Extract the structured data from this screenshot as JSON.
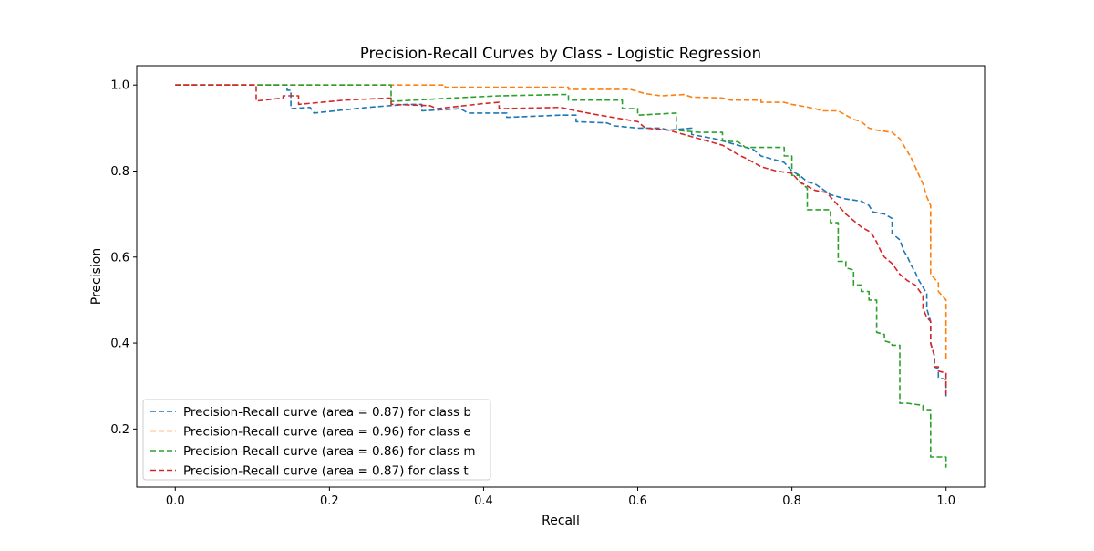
{
  "chart_data": {
    "type": "line",
    "title": "Precision-Recall Curves by Class - Logistic Regression",
    "xlabel": "Recall",
    "ylabel": "Precision",
    "xlim": [
      -0.05,
      1.05
    ],
    "ylim": [
      0.065,
      1.045
    ],
    "x_ticks": [
      0.0,
      0.2,
      0.4,
      0.6,
      0.8,
      1.0
    ],
    "x_tick_labels": [
      "0.0",
      "0.2",
      "0.4",
      "0.6",
      "0.8",
      "1.0"
    ],
    "y_ticks": [
      0.2,
      0.4,
      0.6,
      0.8,
      1.0
    ],
    "y_tick_labels": [
      "0.2",
      "0.4",
      "0.6",
      "0.8",
      "1.0"
    ],
    "grid": false,
    "legend_position": "lower-left",
    "line_style": "dashed",
    "series": [
      {
        "name": "Precision-Recall curve (area = 0.87) for class b",
        "color": "#1f77b4",
        "points": [
          [
            0.0,
            1.0
          ],
          [
            0.145,
            1.0
          ],
          [
            0.145,
            0.988
          ],
          [
            0.15,
            0.988
          ],
          [
            0.15,
            0.945
          ],
          [
            0.175,
            0.948
          ],
          [
            0.18,
            0.935
          ],
          [
            0.25,
            0.948
          ],
          [
            0.3,
            0.955
          ],
          [
            0.32,
            0.955
          ],
          [
            0.32,
            0.94
          ],
          [
            0.37,
            0.945
          ],
          [
            0.38,
            0.935
          ],
          [
            0.43,
            0.935
          ],
          [
            0.43,
            0.925
          ],
          [
            0.5,
            0.93
          ],
          [
            0.52,
            0.93
          ],
          [
            0.52,
            0.915
          ],
          [
            0.56,
            0.912
          ],
          [
            0.57,
            0.905
          ],
          [
            0.6,
            0.9
          ],
          [
            0.63,
            0.9
          ],
          [
            0.64,
            0.895
          ],
          [
            0.67,
            0.9
          ],
          [
            0.67,
            0.885
          ],
          [
            0.7,
            0.875
          ],
          [
            0.73,
            0.86
          ],
          [
            0.75,
            0.85
          ],
          [
            0.76,
            0.835
          ],
          [
            0.78,
            0.825
          ],
          [
            0.79,
            0.82
          ],
          [
            0.8,
            0.8
          ],
          [
            0.81,
            0.79
          ],
          [
            0.82,
            0.775
          ],
          [
            0.83,
            0.77
          ],
          [
            0.85,
            0.745
          ],
          [
            0.86,
            0.74
          ],
          [
            0.87,
            0.735
          ],
          [
            0.89,
            0.73
          ],
          [
            0.9,
            0.72
          ],
          [
            0.905,
            0.705
          ],
          [
            0.92,
            0.7
          ],
          [
            0.93,
            0.69
          ],
          [
            0.93,
            0.655
          ],
          [
            0.94,
            0.64
          ],
          [
            0.945,
            0.615
          ],
          [
            0.95,
            0.6
          ],
          [
            0.955,
            0.58
          ],
          [
            0.96,
            0.565
          ],
          [
            0.965,
            0.545
          ],
          [
            0.97,
            0.53
          ],
          [
            0.975,
            0.515
          ],
          [
            0.975,
            0.48
          ],
          [
            0.98,
            0.45
          ],
          [
            0.98,
            0.4
          ],
          [
            0.985,
            0.37
          ],
          [
            0.985,
            0.345
          ],
          [
            0.99,
            0.34
          ],
          [
            0.99,
            0.32
          ],
          [
            1.0,
            0.315
          ],
          [
            1.0,
            0.27
          ]
        ]
      },
      {
        "name": "Precision-Recall curve (area = 0.96) for class e",
        "color": "#ff7f0e",
        "points": [
          [
            0.0,
            1.0
          ],
          [
            0.35,
            1.0
          ],
          [
            0.35,
            0.995
          ],
          [
            0.51,
            0.995
          ],
          [
            0.51,
            0.99
          ],
          [
            0.59,
            0.99
          ],
          [
            0.6,
            0.985
          ],
          [
            0.61,
            0.98
          ],
          [
            0.63,
            0.975
          ],
          [
            0.66,
            0.978
          ],
          [
            0.67,
            0.972
          ],
          [
            0.71,
            0.97
          ],
          [
            0.72,
            0.965
          ],
          [
            0.76,
            0.965
          ],
          [
            0.76,
            0.96
          ],
          [
            0.79,
            0.96
          ],
          [
            0.8,
            0.955
          ],
          [
            0.81,
            0.952
          ],
          [
            0.83,
            0.945
          ],
          [
            0.84,
            0.94
          ],
          [
            0.86,
            0.94
          ],
          [
            0.87,
            0.93
          ],
          [
            0.88,
            0.92
          ],
          [
            0.89,
            0.915
          ],
          [
            0.9,
            0.9
          ],
          [
            0.91,
            0.895
          ],
          [
            0.93,
            0.89
          ],
          [
            0.94,
            0.875
          ],
          [
            0.945,
            0.86
          ],
          [
            0.95,
            0.845
          ],
          [
            0.955,
            0.83
          ],
          [
            0.96,
            0.81
          ],
          [
            0.965,
            0.79
          ],
          [
            0.97,
            0.77
          ],
          [
            0.975,
            0.74
          ],
          [
            0.98,
            0.72
          ],
          [
            0.98,
            0.56
          ],
          [
            0.99,
            0.54
          ],
          [
            0.99,
            0.52
          ],
          [
            1.0,
            0.5
          ],
          [
            1.0,
            0.36
          ]
        ]
      },
      {
        "name": "Precision-Recall curve (area = 0.86) for class m",
        "color": "#2ca02c",
        "points": [
          [
            0.0,
            1.0
          ],
          [
            0.28,
            1.0
          ],
          [
            0.28,
            0.962
          ],
          [
            0.31,
            0.965
          ],
          [
            0.36,
            0.97
          ],
          [
            0.42,
            0.975
          ],
          [
            0.5,
            0.978
          ],
          [
            0.51,
            0.978
          ],
          [
            0.51,
            0.965
          ],
          [
            0.58,
            0.965
          ],
          [
            0.58,
            0.945
          ],
          [
            0.6,
            0.945
          ],
          [
            0.6,
            0.93
          ],
          [
            0.65,
            0.935
          ],
          [
            0.65,
            0.895
          ],
          [
            0.68,
            0.89
          ],
          [
            0.71,
            0.89
          ],
          [
            0.71,
            0.87
          ],
          [
            0.73,
            0.868
          ],
          [
            0.74,
            0.855
          ],
          [
            0.79,
            0.855
          ],
          [
            0.79,
            0.835
          ],
          [
            0.8,
            0.835
          ],
          [
            0.8,
            0.79
          ],
          [
            0.81,
            0.79
          ],
          [
            0.81,
            0.775
          ],
          [
            0.82,
            0.76
          ],
          [
            0.82,
            0.71
          ],
          [
            0.84,
            0.71
          ],
          [
            0.85,
            0.71
          ],
          [
            0.85,
            0.68
          ],
          [
            0.86,
            0.68
          ],
          [
            0.86,
            0.59
          ],
          [
            0.87,
            0.59
          ],
          [
            0.87,
            0.575
          ],
          [
            0.88,
            0.57
          ],
          [
            0.88,
            0.535
          ],
          [
            0.89,
            0.535
          ],
          [
            0.89,
            0.52
          ],
          [
            0.9,
            0.52
          ],
          [
            0.9,
            0.5
          ],
          [
            0.91,
            0.5
          ],
          [
            0.91,
            0.425
          ],
          [
            0.92,
            0.42
          ],
          [
            0.92,
            0.405
          ],
          [
            0.93,
            0.4
          ],
          [
            0.93,
            0.395
          ],
          [
            0.94,
            0.395
          ],
          [
            0.94,
            0.26
          ],
          [
            0.95,
            0.26
          ],
          [
            0.97,
            0.255
          ],
          [
            0.97,
            0.245
          ],
          [
            0.98,
            0.245
          ],
          [
            0.98,
            0.135
          ],
          [
            0.99,
            0.135
          ],
          [
            1.0,
            0.135
          ],
          [
            1.0,
            0.11
          ]
        ]
      },
      {
        "name": "Precision-Recall curve (area = 0.87) for class t",
        "color": "#d62728",
        "points": [
          [
            0.0,
            1.0
          ],
          [
            0.105,
            1.0
          ],
          [
            0.105,
            0.963
          ],
          [
            0.14,
            0.97
          ],
          [
            0.14,
            0.975
          ],
          [
            0.16,
            0.975
          ],
          [
            0.16,
            0.955
          ],
          [
            0.22,
            0.965
          ],
          [
            0.28,
            0.97
          ],
          [
            0.28,
            0.955
          ],
          [
            0.33,
            0.952
          ],
          [
            0.34,
            0.945
          ],
          [
            0.4,
            0.957
          ],
          [
            0.42,
            0.96
          ],
          [
            0.42,
            0.945
          ],
          [
            0.5,
            0.948
          ],
          [
            0.52,
            0.94
          ],
          [
            0.55,
            0.93
          ],
          [
            0.6,
            0.915
          ],
          [
            0.61,
            0.9
          ],
          [
            0.64,
            0.895
          ],
          [
            0.65,
            0.89
          ],
          [
            0.68,
            0.875
          ],
          [
            0.7,
            0.865
          ],
          [
            0.71,
            0.86
          ],
          [
            0.72,
            0.85
          ],
          [
            0.73,
            0.838
          ],
          [
            0.74,
            0.83
          ],
          [
            0.75,
            0.82
          ],
          [
            0.76,
            0.81
          ],
          [
            0.78,
            0.8
          ],
          [
            0.8,
            0.795
          ],
          [
            0.81,
            0.775
          ],
          [
            0.82,
            0.765
          ],
          [
            0.83,
            0.755
          ],
          [
            0.845,
            0.75
          ],
          [
            0.85,
            0.74
          ],
          [
            0.86,
            0.72
          ],
          [
            0.87,
            0.7
          ],
          [
            0.88,
            0.685
          ],
          [
            0.89,
            0.67
          ],
          [
            0.9,
            0.66
          ],
          [
            0.905,
            0.65
          ],
          [
            0.91,
            0.635
          ],
          [
            0.915,
            0.615
          ],
          [
            0.92,
            0.6
          ],
          [
            0.93,
            0.585
          ],
          [
            0.94,
            0.56
          ],
          [
            0.95,
            0.545
          ],
          [
            0.96,
            0.535
          ],
          [
            0.97,
            0.51
          ],
          [
            0.97,
            0.48
          ],
          [
            0.975,
            0.46
          ],
          [
            0.98,
            0.45
          ],
          [
            0.98,
            0.4
          ],
          [
            0.985,
            0.37
          ],
          [
            0.985,
            0.345
          ],
          [
            0.99,
            0.345
          ],
          [
            0.99,
            0.335
          ],
          [
            1.0,
            0.33
          ],
          [
            1.0,
            0.28
          ]
        ]
      }
    ]
  }
}
